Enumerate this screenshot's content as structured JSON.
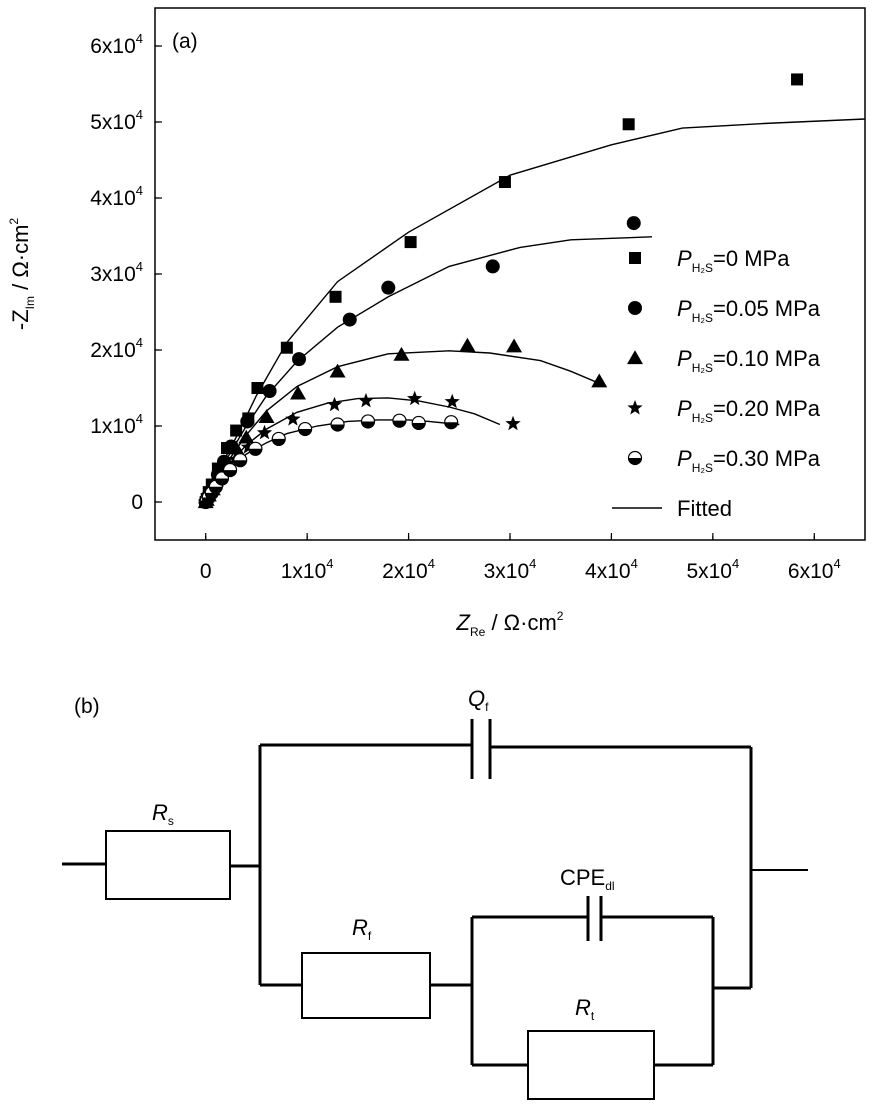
{
  "chart_data": {
    "type": "scatter",
    "panel_label": "(a)",
    "xlabel": {
      "main": "Z",
      "sub": "Re",
      "unit": " / Ω·cm",
      "sup": "2"
    },
    "ylabel": {
      "main": "-Z",
      "sub": "Im",
      "unit": " / Ω·cm",
      "sup": "2"
    },
    "xlim": [
      -5000,
      65000
    ],
    "ylim": [
      -5000,
      65000
    ],
    "x_ticks": [
      {
        "value": 0,
        "base": "0",
        "exp": ""
      },
      {
        "value": 10000,
        "base": "1x10",
        "exp": "4"
      },
      {
        "value": 20000,
        "base": "2x10",
        "exp": "4"
      },
      {
        "value": 30000,
        "base": "3x10",
        "exp": "4"
      },
      {
        "value": 40000,
        "base": "4x10",
        "exp": "4"
      },
      {
        "value": 50000,
        "base": "5x10",
        "exp": "4"
      },
      {
        "value": 60000,
        "base": "6x10",
        "exp": "4"
      }
    ],
    "y_ticks": [
      {
        "value": 0,
        "base": "0",
        "exp": ""
      },
      {
        "value": 10000,
        "base": "1x10",
        "exp": "4"
      },
      {
        "value": 20000,
        "base": "2x10",
        "exp": "4"
      },
      {
        "value": 30000,
        "base": "3x10",
        "exp": "4"
      },
      {
        "value": 40000,
        "base": "4x10",
        "exp": "4"
      },
      {
        "value": 50000,
        "base": "5x10",
        "exp": "4"
      },
      {
        "value": 60000,
        "base": "6x10",
        "exp": "4"
      }
    ],
    "legend_position": "right",
    "series": [
      {
        "name": "0 MPa",
        "legend_prefix": "P",
        "legend_sub": "H₂S",
        "legend_value": "=0 MPa",
        "marker": "square",
        "x": [
          0,
          100,
          300,
          600,
          1200,
          2100,
          3000,
          4200,
          5100,
          8000,
          12800,
          20200,
          29500,
          41700,
          58300
        ],
        "y": [
          0,
          400,
          1300,
          2300,
          4400,
          7100,
          9400,
          11000,
          15000,
          20300,
          27000,
          34200,
          42100,
          49700,
          55600
        ],
        "fit_x": [
          0,
          1200,
          3000,
          5000,
          8000,
          13000,
          20000,
          30000,
          40000,
          47000,
          55000,
          65000
        ],
        "fit_y": [
          0,
          4000,
          8500,
          14000,
          21000,
          29000,
          35500,
          43000,
          47000,
          49200,
          49800,
          50400
        ]
      },
      {
        "name": "0.05 MPa",
        "legend_prefix": "P",
        "legend_sub": "H₂S",
        "legend_value": "=0.05 MPa",
        "marker": "circle",
        "x": [
          0,
          100,
          300,
          700,
          1200,
          1800,
          2500,
          4100,
          6300,
          9200,
          14200,
          18000,
          28300,
          42200
        ],
        "y": [
          0,
          300,
          900,
          2000,
          3600,
          5300,
          7300,
          10600,
          14600,
          18800,
          24000,
          28200,
          31000,
          36700
        ],
        "fit_x": [
          0,
          2000,
          4000,
          6000,
          9000,
          13000,
          18000,
          24000,
          31000,
          36000,
          44000
        ],
        "fit_y": [
          0,
          5500,
          10000,
          14000,
          18500,
          23000,
          27000,
          31000,
          33500,
          34500,
          34900
        ]
      },
      {
        "name": "0.10 MPa",
        "legend_prefix": "P",
        "legend_sub": "H₂S",
        "legend_value": "=0.10 MPa",
        "marker": "triangle",
        "x": [
          0,
          100,
          300,
          700,
          1300,
          2100,
          3000,
          4000,
          6000,
          9100,
          13000,
          19300,
          25800,
          30400,
          38800
        ],
        "y": [
          0,
          300,
          900,
          1700,
          3200,
          5200,
          7100,
          8500,
          11200,
          14300,
          17200,
          19400,
          20600,
          20500,
          15900
        ],
        "fit_x": [
          0,
          2000,
          4000,
          6000,
          9000,
          13000,
          18000,
          24000,
          28000,
          33000,
          36000,
          39000
        ],
        "fit_y": [
          0,
          5000,
          8800,
          12000,
          15200,
          17800,
          19500,
          19900,
          19600,
          18600,
          17200,
          15500
        ]
      },
      {
        "name": "0.20 MPa",
        "legend_prefix": "P",
        "legend_sub": "H₂S",
        "legend_value": "=0.20 MPa",
        "marker": "star",
        "x": [
          0,
          100,
          300,
          700,
          1300,
          2000,
          2900,
          4200,
          5800,
          8600,
          12700,
          15800,
          20600,
          24300,
          30300
        ],
        "y": [
          0,
          300,
          800,
          1600,
          2800,
          4200,
          5600,
          7200,
          9100,
          10900,
          12800,
          13300,
          13600,
          13200,
          10300
        ],
        "fit_x": [
          0,
          2000,
          4000,
          6000,
          9000,
          12000,
          15000,
          18000,
          21000,
          24000,
          26500,
          29000
        ],
        "fit_y": [
          0,
          4500,
          7500,
          9600,
          11800,
          13000,
          13600,
          13700,
          13300,
          12500,
          11600,
          10200
        ]
      },
      {
        "name": "0.30 MPa",
        "legend_prefix": "P",
        "legend_sub": "H₂S",
        "legend_value": "=0.30 MPa",
        "marker": "half-circle",
        "x": [
          0,
          100,
          300,
          600,
          1000,
          1600,
          2400,
          3400,
          4900,
          7200,
          9800,
          13000,
          16000,
          19100,
          21000,
          24200
        ],
        "y": [
          0,
          200,
          600,
          1200,
          2000,
          3100,
          4200,
          5500,
          7000,
          8300,
          9600,
          10200,
          10600,
          10700,
          10400,
          10500
        ],
        "fit_x": [
          0,
          2000,
          4000,
          6000,
          8000,
          11000,
          14000,
          17000,
          20000,
          22000,
          25000
        ],
        "fit_y": [
          0,
          4000,
          6300,
          7800,
          9000,
          10000,
          10600,
          10800,
          10800,
          10600,
          10200
        ]
      }
    ],
    "fit_legend_label": "Fitted"
  },
  "circuit": {
    "panel_label": "(b)",
    "components": [
      {
        "id": "Rs",
        "main": "R",
        "sub": "s"
      },
      {
        "id": "Qf",
        "main": "Q",
        "sub": "f"
      },
      {
        "id": "Rf",
        "main": "R",
        "sub": "f"
      },
      {
        "id": "CPEdl",
        "main": "CPE",
        "sub": "dl"
      },
      {
        "id": "Rt",
        "main": "R",
        "sub": "t"
      }
    ]
  }
}
